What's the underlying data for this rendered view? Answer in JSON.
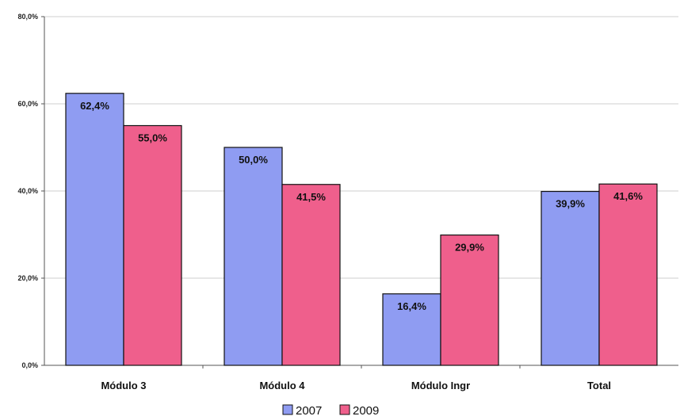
{
  "chart_data": {
    "type": "bar",
    "categories": [
      "Módulo 3",
      "Módulo 4",
      "Módulo Ingr",
      "Total"
    ],
    "series": [
      {
        "name": "2007",
        "values": [
          62.4,
          50.0,
          16.4,
          39.9
        ],
        "labels": [
          "62,4%",
          "50,0%",
          "16,4%",
          "39,9%"
        ],
        "color": "#8f9cf2"
      },
      {
        "name": "2009",
        "values": [
          55.0,
          41.5,
          29.9,
          41.6
        ],
        "labels": [
          "55,0%",
          "41,5%",
          "29,9%",
          "41,6%"
        ],
        "color": "#ef5f8c"
      }
    ],
    "yticks": [
      "0,0%",
      "20,0%",
      "40,0%",
      "60,0%",
      "80,0%"
    ],
    "ylim": [
      0,
      80
    ],
    "ytick_values": [
      0,
      20,
      40,
      60,
      80
    ],
    "grid": true,
    "legend_position": "bottom-center",
    "title": "",
    "xlabel": "",
    "ylabel": ""
  }
}
